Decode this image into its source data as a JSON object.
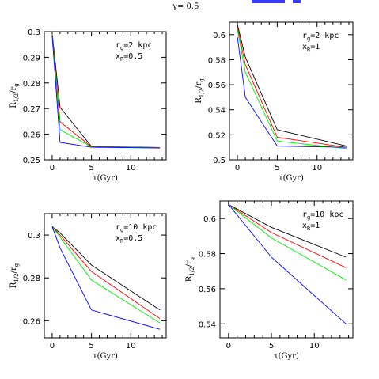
{
  "figure": {
    "top_label": "γ= 0.5",
    "colors": {
      "black": "#000000",
      "red": "#ff0000",
      "green": "#00ee00",
      "blue": "#0000ff",
      "top_blue": "#3a3aff"
    }
  },
  "chart_data": [
    {
      "type": "line",
      "xlabel": "τ(Gyr)",
      "ylabel": "R1/2/rg",
      "annotation": [
        "rg=2 kpc",
        "xR=0.5"
      ],
      "xlim": [
        -1,
        14.5
      ],
      "ylim": [
        0.25,
        0.3
      ],
      "xticks": [
        0,
        5,
        10
      ],
      "yticks": [
        0.25,
        0.26,
        0.27,
        0.28,
        0.29,
        0.3
      ],
      "ytick_labels": [
        "0.25",
        "0.26",
        "0.27",
        "0.28",
        "0.29",
        "0.3"
      ],
      "x": [
        0,
        1,
        5,
        13.7
      ],
      "series": [
        {
          "color": "#000000",
          "values": [
            0.2995,
            0.2705,
            0.2552,
            0.2548
          ]
        },
        {
          "color": "#ff0000",
          "values": [
            0.2993,
            0.2648,
            0.2551,
            0.2548
          ]
        },
        {
          "color": "#00ee00",
          "values": [
            0.299,
            0.2618,
            0.255,
            0.2547
          ]
        },
        {
          "color": "#0000ff",
          "values": [
            0.2985,
            0.2568,
            0.2549,
            0.2546
          ]
        }
      ]
    },
    {
      "type": "line",
      "xlabel": "τ(Gyr)",
      "ylabel": "R1/2/rg",
      "annotation": [
        "rg=2 kpc",
        "xR=1"
      ],
      "xlim": [
        -1,
        14.5
      ],
      "ylim": [
        0.5,
        0.61
      ],
      "xticks": [
        0,
        5,
        10
      ],
      "yticks": [
        0.5,
        0.52,
        0.54,
        0.56,
        0.58,
        0.6
      ],
      "ytick_labels": [
        "0.5",
        "0.52",
        "0.54",
        "0.56",
        "0.58",
        "0.6"
      ],
      "x": [
        0,
        1,
        5,
        13.7
      ],
      "series": [
        {
          "color": "#000000",
          "values": [
            0.608,
            0.582,
            0.524,
            0.511
          ]
        },
        {
          "color": "#ff0000",
          "values": [
            0.606,
            0.576,
            0.518,
            0.51
          ]
        },
        {
          "color": "#00ee00",
          "values": [
            0.604,
            0.57,
            0.515,
            0.509
          ]
        },
        {
          "color": "#0000ff",
          "values": [
            0.598,
            0.55,
            0.511,
            0.51
          ]
        }
      ]
    },
    {
      "type": "line",
      "xlabel": "τ(Gyr)",
      "ylabel": "R1/2/rg",
      "annotation": [
        "rg=10 kpc",
        "xR=0.5"
      ],
      "xlim": [
        -1,
        14.5
      ],
      "ylim": [
        0.252,
        0.31
      ],
      "xticks": [
        0,
        5,
        10
      ],
      "yticks": [
        0.26,
        0.28,
        0.3
      ],
      "ytick_labels": [
        "0.26",
        "0.28",
        "0.3"
      ],
      "x": [
        0,
        1,
        5,
        13.7
      ],
      "series": [
        {
          "color": "#000000",
          "values": [
            0.304,
            0.301,
            0.286,
            0.265
          ]
        },
        {
          "color": "#ff0000",
          "values": [
            0.304,
            0.3,
            0.283,
            0.261
          ]
        },
        {
          "color": "#00ee00",
          "values": [
            0.304,
            0.299,
            0.279,
            0.259
          ]
        },
        {
          "color": "#0000ff",
          "values": [
            0.304,
            0.294,
            0.265,
            0.256
          ]
        }
      ]
    },
    {
      "type": "line",
      "xlabel": "τ(Gyr)",
      "ylabel": "R1/2/rg",
      "annotation": [
        "rg=10 kpc",
        "xR=1"
      ],
      "xlim": [
        -1,
        14.5
      ],
      "ylim": [
        0.532,
        0.61
      ],
      "xticks": [
        0,
        5,
        10
      ],
      "yticks": [
        0.54,
        0.56,
        0.58,
        0.6
      ],
      "ytick_labels": [
        "0.54",
        "0.56",
        "0.58",
        "0.6"
      ],
      "x": [
        0,
        5,
        13.7
      ],
      "series": [
        {
          "color": "#000000",
          "values": [
            0.608,
            0.595,
            0.578
          ]
        },
        {
          "color": "#ff0000",
          "values": [
            0.608,
            0.592,
            0.572
          ]
        },
        {
          "color": "#00ee00",
          "values": [
            0.608,
            0.589,
            0.565
          ]
        },
        {
          "color": "#0000ff",
          "values": [
            0.608,
            0.578,
            0.54
          ]
        }
      ]
    }
  ]
}
